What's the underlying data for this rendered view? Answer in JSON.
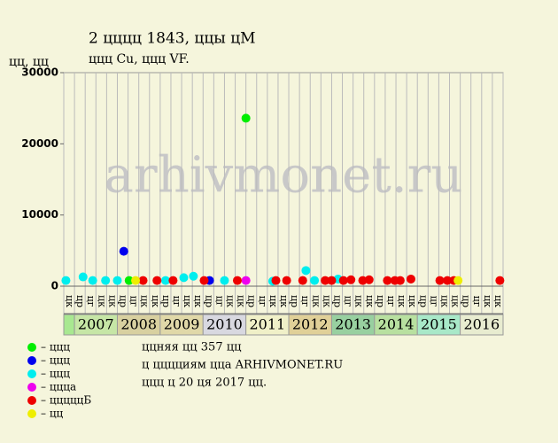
{
  "chart_data": {
    "type": "scatter",
    "title": "2 цццц 1843, ццы цM",
    "subtitle": "ццц Cu, ццц VF.",
    "y_label": "цц, цц",
    "watermark": "arhivmonet.ru",
    "xlim": [
      0,
      41
    ],
    "ylim": [
      0,
      30000
    ],
    "yticks": [
      0,
      10000,
      20000,
      30000
    ],
    "categories": [
      "цк",
      "цр",
      "цг",
      "цк",
      "цк",
      "цр",
      "цг",
      "цк",
      "цк",
      "цр",
      "цг",
      "цк",
      "цк",
      "цр",
      "цг",
      "цк",
      "цк",
      "цр",
      "цг",
      "цк",
      "цк",
      "цр",
      "цг",
      "цк",
      "цк",
      "цр",
      "цг",
      "цк",
      "цк",
      "цр",
      "цг",
      "цк",
      "цк",
      "цр",
      "цг",
      "цк",
      "цк",
      "цр",
      "цг",
      "цк",
      "цк"
    ],
    "years": [
      {
        "label": "2007",
        "color": "#c6e6a6"
      },
      {
        "label": "2008",
        "color": "#d8d0a0"
      },
      {
        "label": "2009",
        "color": "#e0d8a8"
      },
      {
        "label": "2010",
        "color": "#d8d8e0"
      },
      {
        "label": "2011",
        "color": "#f0f0c8"
      },
      {
        "label": "2012",
        "color": "#e0d098"
      },
      {
        "label": "2013",
        "color": "#98d0a0"
      },
      {
        "label": "2014",
        "color": "#b8e0a0"
      },
      {
        "label": "2015",
        "color": "#a8e8c8"
      },
      {
        "label": "2016",
        "color": "#e8ecd0"
      }
    ],
    "first_cell_color": "#a8e890",
    "series": [
      {
        "name": "– ццц",
        "color": "#00ee00",
        "x": [
          6.1,
          17.0
        ],
        "values": [
          800,
          23600
        ]
      },
      {
        "name": "– ццц",
        "color": "#0000ee",
        "x": [
          5.6,
          13.6
        ],
        "values": [
          4900,
          800
        ]
      },
      {
        "name": "– ццц",
        "color": "#00eeee",
        "x": [
          0.2,
          1.8,
          2.7,
          3.9,
          5.0,
          9.5,
          11.2,
          12.1,
          15.0,
          19.5,
          22.6,
          23.4,
          25.6
        ],
        "values": [
          800,
          1300,
          800,
          800,
          800,
          800,
          1200,
          1400,
          800,
          700,
          2200,
          800,
          1000
        ]
      },
      {
        "name": "– цццa",
        "color": "#ee00ee",
        "x": [
          17.0
        ],
        "values": [
          800
        ]
      },
      {
        "name": "– цццццБ",
        "color": "#ee0000",
        "x": [
          7.4,
          8.7,
          10.2,
          13.1,
          16.2,
          19.8,
          20.8,
          22.3,
          24.4,
          25.0,
          26.1,
          26.8,
          27.9,
          28.5,
          30.2,
          30.9,
          31.4,
          32.4,
          35.1,
          35.8,
          36.4,
          40.7
        ],
        "values": [
          800,
          800,
          800,
          800,
          800,
          800,
          800,
          800,
          800,
          800,
          800,
          900,
          800,
          900,
          800,
          800,
          800,
          1000,
          800,
          800,
          800,
          800
        ]
      },
      {
        "name": "– цц",
        "color": "#eeee00",
        "x": [
          6.7,
          36.8
        ],
        "values": [
          800,
          800
        ]
      }
    ],
    "notes": [
      "ццняя цц 357 цц",
      "ц цццциям цца ARHIVMONET.RU",
      "ццц ц 20 ця 2017 цц."
    ]
  }
}
